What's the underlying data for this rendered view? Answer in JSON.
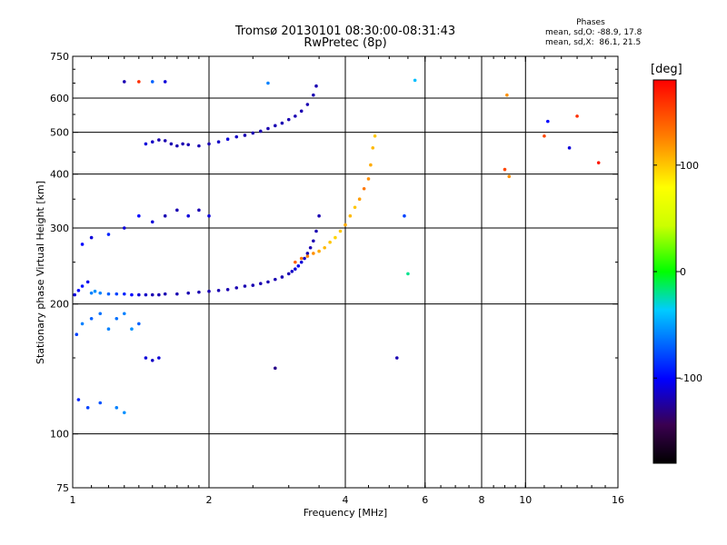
{
  "header": {
    "title_line1": "Tromsø 20130101 08:30:00-08:31:43",
    "title_line2": "RwPretec (8p)",
    "stats_title": "Phases",
    "stats_line1": "mean, sd,O: -88.9, 17.8",
    "stats_line2": "mean, sd,X:  86.1, 21.5"
  },
  "colorbar": {
    "unit": "[deg]",
    "tick_labels": [
      "100",
      "0",
      "-100"
    ],
    "tick_values": [
      100,
      0,
      -100
    ],
    "range": [
      -180,
      180
    ]
  },
  "chart_data": {
    "type": "scatter",
    "title": "Tromsø 20130101 08:30:00-08:31:43",
    "subtitle": "RwPretec (8p)",
    "xlabel": "Frequency [MHz]",
    "ylabel": "Stationary phase Virtual Height [km]",
    "x_scale": "log",
    "y_scale": "log",
    "xlim": [
      1,
      16
    ],
    "ylim": [
      75,
      750
    ],
    "x_ticks": [
      1,
      2,
      4,
      6,
      8,
      10,
      16
    ],
    "x_tick_labels": [
      "1",
      "2",
      "4",
      "6",
      "8",
      "10",
      "16"
    ],
    "y_ticks": [
      75,
      100,
      200,
      300,
      400,
      500,
      600,
      750
    ],
    "y_tick_labels": [
      "75",
      "100",
      "200",
      "300",
      "400",
      "500",
      "600",
      "750"
    ],
    "x_gridlines": [
      2,
      4,
      6,
      8,
      10
    ],
    "y_gridlines": [
      100,
      200,
      300,
      400,
      500,
      600
    ],
    "grid": true,
    "color_by": "phase [deg]",
    "series": [
      {
        "values": [
          [
            1.01,
            210,
            -110
          ],
          [
            1.03,
            215,
            -100
          ],
          [
            1.05,
            220,
            -95
          ],
          [
            1.08,
            225,
            -105
          ],
          [
            1.1,
            212,
            -60
          ],
          [
            1.12,
            214,
            -55
          ],
          [
            1.15,
            212,
            -60
          ],
          [
            1.2,
            211,
            -70
          ],
          [
            1.25,
            211,
            -80
          ],
          [
            1.3,
            211,
            -90
          ],
          [
            1.35,
            210,
            -100
          ],
          [
            1.4,
            210,
            -110
          ],
          [
            1.45,
            210,
            -115
          ],
          [
            1.5,
            210,
            -120
          ],
          [
            1.55,
            210,
            -120
          ],
          [
            1.6,
            211,
            -120
          ],
          [
            1.7,
            211,
            -120
          ],
          [
            1.8,
            212,
            -120
          ],
          [
            1.9,
            213,
            -120
          ],
          [
            2.0,
            214,
            -120
          ],
          [
            2.1,
            215,
            -120
          ],
          [
            2.2,
            216,
            -120
          ],
          [
            2.3,
            218,
            -120
          ],
          [
            2.4,
            220,
            -120
          ],
          [
            2.5,
            221,
            -120
          ],
          [
            2.6,
            223,
            -120
          ],
          [
            2.7,
            225,
            -120
          ],
          [
            2.8,
            228,
            -120
          ],
          [
            2.9,
            231,
            -120
          ],
          [
            3.0,
            235,
            -120
          ],
          [
            3.05,
            238,
            -115
          ],
          [
            3.1,
            241,
            -110
          ],
          [
            3.15,
            245,
            -105
          ],
          [
            3.2,
            250,
            -110
          ],
          [
            3.25,
            255,
            -115
          ],
          [
            3.3,
            262,
            -120
          ],
          [
            3.35,
            270,
            -120
          ],
          [
            3.4,
            280,
            -120
          ],
          [
            3.45,
            295,
            -120
          ],
          [
            3.5,
            320,
            -120
          ]
        ]
      },
      {
        "values": [
          [
            1.45,
            470,
            -110
          ],
          [
            1.5,
            475,
            -115
          ],
          [
            1.55,
            480,
            -120
          ],
          [
            1.6,
            478,
            -120
          ],
          [
            1.65,
            470,
            -120
          ],
          [
            1.7,
            465,
            -120
          ],
          [
            1.75,
            470,
            -120
          ],
          [
            1.8,
            468,
            -120
          ],
          [
            1.9,
            465,
            -120
          ],
          [
            2.0,
            470,
            -120
          ],
          [
            2.1,
            475,
            -115
          ],
          [
            2.2,
            482,
            -110
          ],
          [
            2.3,
            488,
            -115
          ],
          [
            2.4,
            492,
            -120
          ],
          [
            2.5,
            498,
            -120
          ],
          [
            2.6,
            503,
            -120
          ],
          [
            2.7,
            510,
            -120
          ],
          [
            2.8,
            518,
            -120
          ],
          [
            2.9,
            525,
            -120
          ],
          [
            3.0,
            535,
            -120
          ],
          [
            3.1,
            545,
            -120
          ],
          [
            3.2,
            560,
            -120
          ],
          [
            3.3,
            580,
            -120
          ],
          [
            3.4,
            610,
            -120
          ],
          [
            3.45,
            640,
            -120
          ]
        ]
      },
      {
        "values": [
          [
            3.1,
            250,
            140
          ],
          [
            3.2,
            255,
            130
          ],
          [
            3.3,
            258,
            125
          ],
          [
            3.4,
            262,
            120
          ],
          [
            3.5,
            265,
            110
          ],
          [
            3.6,
            270,
            105
          ],
          [
            3.7,
            278,
            100
          ],
          [
            3.8,
            285,
            95
          ],
          [
            3.9,
            295,
            100
          ],
          [
            4.0,
            305,
            110
          ],
          [
            4.1,
            320,
            105
          ],
          [
            4.2,
            335,
            100
          ],
          [
            4.3,
            350,
            115
          ],
          [
            4.4,
            370,
            130
          ],
          [
            4.5,
            390,
            120
          ],
          [
            4.55,
            420,
            110
          ],
          [
            4.6,
            460,
            105
          ],
          [
            4.65,
            490,
            100
          ]
        ]
      },
      {
        "values": [
          [
            1.02,
            170,
            -80
          ],
          [
            1.05,
            180,
            -60
          ],
          [
            1.1,
            185,
            -70
          ],
          [
            1.15,
            190,
            -65
          ],
          [
            1.2,
            175,
            -60
          ],
          [
            1.25,
            185,
            -65
          ],
          [
            1.3,
            190,
            -60
          ],
          [
            1.35,
            175,
            -55
          ],
          [
            1.4,
            180,
            -70
          ],
          [
            1.45,
            150,
            -110
          ],
          [
            1.5,
            148,
            -115
          ],
          [
            1.55,
            150,
            -110
          ],
          [
            1.03,
            120,
            -90
          ],
          [
            1.08,
            115,
            -80
          ],
          [
            1.15,
            118,
            -75
          ],
          [
            1.25,
            115,
            -60
          ],
          [
            1.3,
            112,
            -55
          ],
          [
            1.05,
            275,
            -100
          ],
          [
            1.1,
            285,
            -110
          ],
          [
            1.2,
            290,
            -90
          ],
          [
            1.3,
            300,
            -110
          ],
          [
            1.4,
            320,
            -100
          ],
          [
            1.5,
            310,
            -110
          ],
          [
            1.6,
            320,
            -120
          ],
          [
            1.7,
            330,
            -120
          ],
          [
            1.8,
            320,
            -110
          ],
          [
            1.9,
            330,
            -120
          ],
          [
            2.0,
            320,
            -110
          ]
        ]
      },
      {
        "values": [
          [
            1.3,
            655,
            -120
          ],
          [
            1.4,
            655,
            160
          ],
          [
            1.5,
            655,
            -70
          ],
          [
            1.6,
            655,
            -110
          ],
          [
            2.7,
            650,
            -60
          ],
          [
            5.7,
            660,
            -40
          ],
          [
            9.1,
            610,
            120
          ],
          [
            9.0,
            410,
            150
          ],
          [
            9.2,
            395,
            120
          ],
          [
            11.0,
            490,
            150
          ],
          [
            11.2,
            530,
            -100
          ],
          [
            13.0,
            545,
            160
          ],
          [
            12.5,
            460,
            -110
          ],
          [
            14.5,
            425,
            170
          ],
          [
            2.8,
            142,
            -130
          ],
          [
            5.2,
            150,
            -120
          ],
          [
            5.5,
            235,
            -20
          ],
          [
            5.4,
            320,
            -80
          ]
        ]
      }
    ]
  }
}
